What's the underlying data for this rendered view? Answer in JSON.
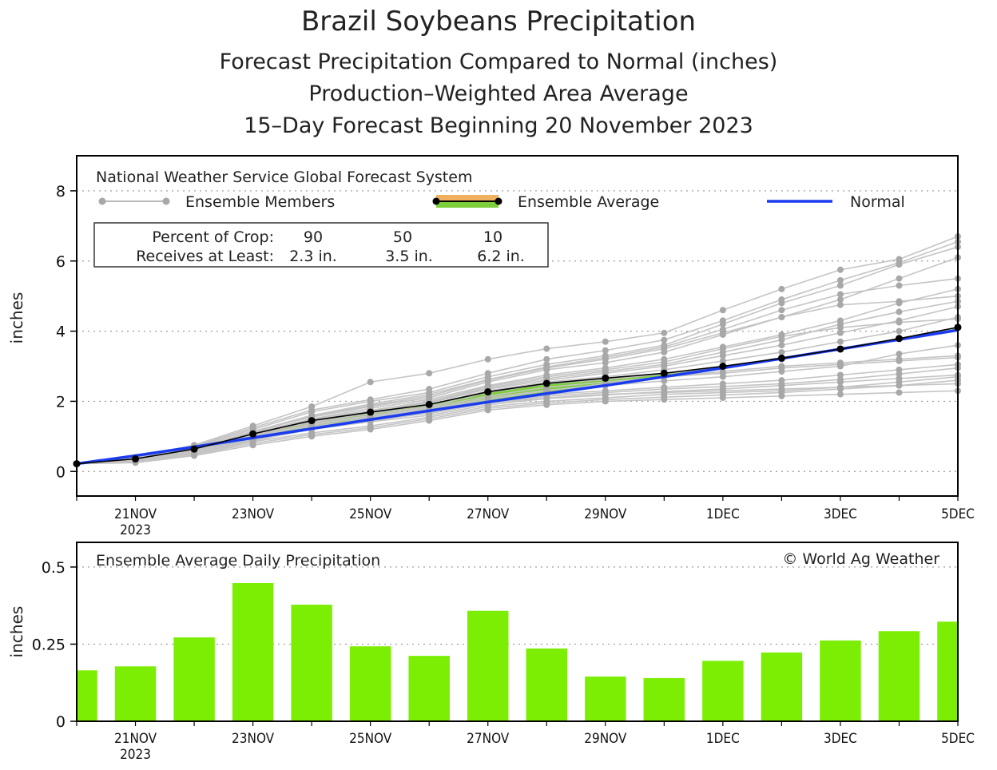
{
  "chart_data": [
    {
      "type": "line",
      "title": "Brazil Soybeans Precipitation",
      "subtitles": [
        "Forecast Precipitation Compared to Normal (inches)",
        "Production–Weighted Area Average",
        "15–Day Forecast Beginning 20 November 2023"
      ],
      "source_label": "National Weather Service Global Forecast System",
      "legend": {
        "members": "Ensemble Members",
        "average": "Ensemble Average",
        "normal": "Normal"
      },
      "crop_table": {
        "row1_label": "Percent of Crop:",
        "row2_label": "Receives at Least:",
        "percents": [
          "90",
          "50",
          "10"
        ],
        "amounts": [
          "2.3 in.",
          "3.5 in.",
          "6.2 in."
        ]
      },
      "ylabel": "inches",
      "ylim": [
        -0.7,
        9
      ],
      "yticks": [
        0,
        2,
        4,
        6,
        8
      ],
      "ytick_labels": [
        "0",
        "2",
        "4",
        "6",
        "8"
      ],
      "xlim": [
        0,
        15
      ],
      "x_ticks": [
        {
          "x": 1,
          "label": "21NOV",
          "sub": "2023"
        },
        {
          "x": 3,
          "label": "23NOV",
          "sub": ""
        },
        {
          "x": 5,
          "label": "25NOV",
          "sub": ""
        },
        {
          "x": 7,
          "label": "27NOV",
          "sub": ""
        },
        {
          "x": 9,
          "label": "29NOV",
          "sub": ""
        },
        {
          "x": 11,
          "label": "1DEC",
          "sub": ""
        },
        {
          "x": 13,
          "label": "3DEC",
          "sub": ""
        },
        {
          "x": 15,
          "label": "5DEC",
          "sub": ""
        }
      ],
      "x": [
        0,
        1,
        2,
        3,
        4,
        5,
        6,
        7,
        8,
        9,
        10,
        11,
        12,
        13,
        14,
        15
      ],
      "ensemble_average": [
        0.22,
        0.36,
        0.64,
        1.07,
        1.45,
        1.69,
        1.91,
        2.27,
        2.51,
        2.66,
        2.8,
        3.0,
        3.23,
        3.49,
        3.79,
        4.11
      ],
      "normal": [
        0.22,
        0.45,
        0.7,
        0.96,
        1.22,
        1.48,
        1.73,
        1.98,
        2.22,
        2.45,
        2.7,
        2.95,
        3.22,
        3.49,
        3.76,
        4.03
      ],
      "members": [
        [
          0.22,
          0.33,
          0.6,
          1.05,
          1.4,
          1.65,
          1.85,
          2.25,
          2.5,
          2.62,
          2.78,
          2.98,
          3.2,
          3.48,
          3.78,
          4.1
        ],
        [
          0.22,
          0.3,
          0.55,
          0.95,
          1.25,
          1.5,
          1.65,
          1.95,
          2.1,
          2.2,
          2.25,
          2.3,
          2.35,
          2.4,
          2.45,
          2.5
        ],
        [
          0.22,
          0.35,
          0.65,
          1.15,
          1.55,
          1.85,
          2.1,
          2.55,
          2.9,
          3.1,
          3.4,
          3.9,
          4.4,
          4.9,
          5.5,
          6.1
        ],
        [
          0.22,
          0.4,
          0.75,
          1.3,
          1.85,
          2.55,
          2.8,
          3.2,
          3.5,
          3.7,
          3.95,
          4.6,
          5.2,
          5.75,
          6.05,
          6.7
        ],
        [
          0.22,
          0.25,
          0.45,
          0.75,
          1.0,
          1.2,
          1.45,
          1.75,
          1.9,
          2.0,
          2.05,
          2.1,
          2.15,
          2.2,
          2.25,
          2.3
        ],
        [
          0.22,
          0.38,
          0.7,
          1.2,
          1.7,
          2.0,
          2.25,
          2.7,
          3.05,
          3.3,
          3.6,
          4.2,
          4.8,
          5.3,
          5.9,
          6.4
        ],
        [
          0.22,
          0.32,
          0.58,
          1.0,
          1.35,
          1.55,
          1.75,
          2.05,
          2.3,
          2.5,
          2.7,
          2.85,
          3.0,
          3.1,
          3.2,
          3.3
        ],
        [
          0.22,
          0.36,
          0.66,
          1.1,
          1.5,
          1.8,
          2.05,
          2.45,
          2.75,
          2.95,
          3.2,
          3.55,
          3.9,
          4.3,
          4.8,
          5.2
        ],
        [
          0.22,
          0.28,
          0.5,
          0.85,
          1.1,
          1.3,
          1.55,
          1.85,
          2.0,
          2.1,
          2.2,
          2.25,
          2.3,
          2.4,
          2.55,
          2.7
        ],
        [
          0.22,
          0.34,
          0.62,
          1.02,
          1.42,
          1.7,
          1.95,
          2.35,
          2.6,
          2.8,
          3.0,
          3.3,
          3.6,
          3.95,
          4.3,
          4.7
        ],
        [
          0.22,
          0.31,
          0.56,
          0.92,
          1.28,
          1.52,
          1.7,
          2.0,
          2.2,
          2.3,
          2.4,
          2.5,
          2.6,
          2.75,
          2.9,
          3.05
        ],
        [
          0.22,
          0.37,
          0.68,
          1.12,
          1.58,
          1.88,
          2.15,
          2.6,
          2.95,
          3.2,
          3.5,
          3.95,
          4.4,
          4.75,
          4.85,
          5.0
        ],
        [
          0.22,
          0.29,
          0.52,
          0.88,
          1.2,
          1.42,
          1.6,
          1.9,
          2.08,
          2.18,
          2.28,
          2.35,
          2.45,
          2.55,
          2.65,
          2.75
        ],
        [
          0.22,
          0.35,
          0.64,
          1.06,
          1.46,
          1.72,
          1.98,
          2.38,
          2.65,
          2.85,
          3.05,
          3.4,
          3.75,
          4.2,
          4.55,
          4.85
        ],
        [
          0.22,
          0.33,
          0.6,
          0.98,
          1.36,
          1.6,
          1.82,
          2.15,
          2.4,
          2.55,
          2.7,
          2.8,
          2.95,
          3.05,
          3.15,
          3.25
        ],
        [
          0.22,
          0.36,
          0.67,
          1.14,
          1.6,
          1.92,
          2.2,
          2.62,
          2.98,
          3.25,
          3.55,
          4.05,
          4.6,
          5.05,
          5.3,
          5.5
        ],
        [
          0.22,
          0.27,
          0.48,
          0.8,
          1.05,
          1.25,
          1.5,
          1.8,
          1.95,
          2.05,
          2.12,
          2.18,
          2.25,
          2.35,
          2.45,
          2.6
        ],
        [
          0.22,
          0.34,
          0.61,
          1.04,
          1.44,
          1.68,
          1.9,
          2.3,
          2.55,
          2.7,
          2.9,
          3.15,
          3.4,
          3.7,
          4.0,
          4.4
        ],
        [
          0.22,
          0.39,
          0.72,
          1.25,
          1.75,
          2.05,
          2.35,
          2.8,
          3.2,
          3.45,
          3.75,
          4.3,
          4.9,
          5.45,
          5.95,
          6.55
        ],
        [
          0.22,
          0.3,
          0.54,
          0.9,
          1.22,
          1.45,
          1.66,
          1.95,
          2.15,
          2.25,
          2.35,
          2.42,
          2.5,
          2.62,
          2.78,
          2.95
        ],
        [
          0.22,
          0.35,
          0.63,
          1.08,
          1.48,
          1.74,
          2.0,
          2.42,
          2.7,
          2.9,
          3.12,
          3.5,
          3.85,
          4.1,
          4.25,
          4.35
        ],
        [
          0.22,
          0.32,
          0.57,
          0.97,
          1.32,
          1.58,
          1.78,
          2.1,
          2.32,
          2.45,
          2.58,
          2.7,
          2.85,
          3.0,
          3.35,
          3.6
        ]
      ]
    },
    {
      "type": "bar",
      "title": "Ensemble Average Daily Precipitation",
      "copyright": "© World Ag Weather",
      "ylabel": "inches",
      "ylim": [
        0,
        0.58
      ],
      "yticks": [
        0,
        0.25,
        0.5
      ],
      "ytick_labels": [
        "0",
        "0.25",
        "0.5"
      ],
      "x": [
        0,
        1,
        2,
        3,
        4,
        5,
        6,
        7,
        8,
        9,
        10,
        11,
        12,
        13,
        14,
        15
      ],
      "values": [
        0.165,
        0.178,
        0.272,
        0.448,
        0.378,
        0.243,
        0.212,
        0.358,
        0.236,
        0.145,
        0.14,
        0.196,
        0.223,
        0.262,
        0.292,
        0.323
      ],
      "color": "#7cee04"
    }
  ],
  "colors": {
    "member": "#c4c4c4",
    "member_dot": "#a8a8a8",
    "average_line": "#000000",
    "fill_above": "#7ccf3a",
    "fill_below": "#f0b060",
    "normal": "#1a3cf0",
    "bar": "#7cee04"
  }
}
